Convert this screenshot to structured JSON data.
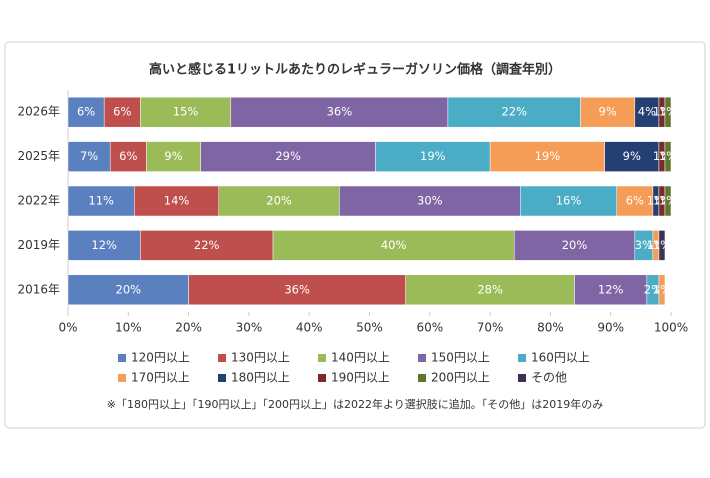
{
  "chart_data": {
    "type": "stacked-bar-horizontal",
    "title": "高いと感じる1リットルあたりのレギュラーガソリン価格（調査年別）",
    "categories": [
      "2026年",
      "2025年",
      "2022年",
      "2019年",
      "2016年"
    ],
    "series": [
      {
        "name": "120円以上",
        "color": "#5a80bf",
        "values": [
          6,
          7,
          11,
          12,
          20
        ],
        "value_labels": [
          "6%",
          "7%",
          "11%",
          "12%",
          "20%"
        ]
      },
      {
        "name": "130円以上",
        "color": "#be4f4c",
        "values": [
          6,
          6,
          14,
          22,
          36
        ],
        "value_labels": [
          "6%",
          "6%",
          "14%",
          "22%",
          "36%"
        ]
      },
      {
        "name": "140円以上",
        "color": "#9bbb59",
        "values": [
          15,
          9,
          20,
          40,
          28
        ],
        "value_labels": [
          "15%",
          "9%",
          "20%",
          "40%",
          "28%"
        ]
      },
      {
        "name": "150円以上",
        "color": "#7f65a3",
        "values": [
          36,
          29,
          30,
          20,
          12
        ],
        "value_labels": [
          "36%",
          "29%",
          "30%",
          "20%",
          "12%"
        ]
      },
      {
        "name": "160円以上",
        "color": "#4bacc6",
        "values": [
          22,
          19,
          16,
          3,
          2
        ],
        "value_labels": [
          "22%",
          "19%",
          "16%",
          "3%",
          "2%"
        ]
      },
      {
        "name": "170円以上",
        "color": "#f59d56",
        "values": [
          9,
          19,
          6,
          1,
          1
        ],
        "value_labels": [
          "9%",
          "19%",
          "6%",
          "1%",
          "1%"
        ]
      },
      {
        "name": "180円以上",
        "color": "#243f73",
        "values": [
          4,
          9,
          1,
          null,
          null
        ],
        "value_labels": [
          "4%",
          "9%",
          "1%",
          null,
          null
        ]
      },
      {
        "name": "190円以上",
        "color": "#772c2a",
        "values": [
          1,
          1,
          1,
          null,
          null
        ],
        "value_labels": [
          "1%",
          "1%",
          "1%",
          null,
          null
        ]
      },
      {
        "name": "200円以上",
        "color": "#5f7530",
        "values": [
          1,
          1,
          1,
          null,
          null
        ],
        "value_labels": [
          "1%",
          "1%",
          "1%",
          null,
          null
        ]
      },
      {
        "name": "その他",
        "color": "#3f3151",
        "values": [
          null,
          null,
          null,
          1,
          null
        ],
        "value_labels": [
          null,
          null,
          null,
          "1%",
          null
        ]
      }
    ],
    "xlim": [
      0,
      100
    ],
    "xticks": [
      {
        "value": 0,
        "label": "0%"
      },
      {
        "value": 10,
        "label": "10%"
      },
      {
        "value": 20,
        "label": "20%"
      },
      {
        "value": 30,
        "label": "30%"
      },
      {
        "value": 40,
        "label": "40%"
      },
      {
        "value": 50,
        "label": "50%"
      },
      {
        "value": 60,
        "label": "60%"
      },
      {
        "value": 70,
        "label": "70%"
      },
      {
        "value": 80,
        "label": "80%"
      },
      {
        "value": 90,
        "label": "90%"
      },
      {
        "value": 100,
        "label": "100%"
      }
    ],
    "legend": "bottom",
    "annotation": "※「180円以上」「190円以上」「200円以上」は2022年より選択肢に追加。「その他」は2019年のみ"
  }
}
